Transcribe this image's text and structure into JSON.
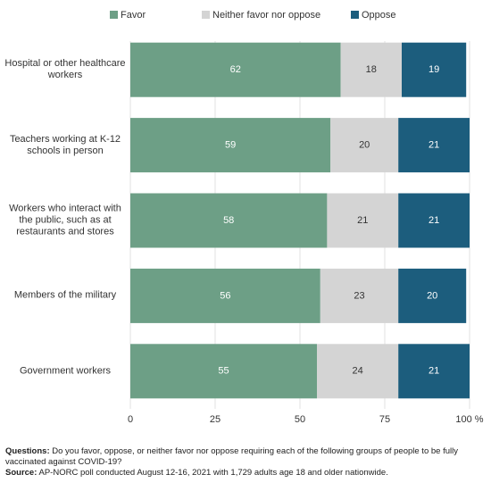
{
  "chart_data": {
    "type": "stacked-bar-horizontal",
    "categories": [
      "Hospital or other healthcare workers",
      "Teachers working at K-12 schools in person",
      "Workers who interact with the public, such as at restaurants and stores",
      "Members of the military",
      "Government workers"
    ],
    "series": [
      {
        "name": "Favor",
        "color": "#6d9f86",
        "label_color": "#ffffff",
        "values": [
          62,
          59,
          58,
          56,
          55
        ]
      },
      {
        "name": "Neither favor nor oppose",
        "color": "#d4d4d4",
        "label_color": "#333333",
        "values": [
          18,
          20,
          21,
          23,
          24
        ]
      },
      {
        "name": "Oppose",
        "color": "#1c5d7d",
        "label_color": "#ffffff",
        "values": [
          19,
          21,
          21,
          20,
          21
        ]
      }
    ],
    "xlim": [
      0,
      100
    ],
    "xticks": [
      0,
      25,
      50,
      75,
      {
        "value": 100,
        "label": "100 %"
      }
    ],
    "grid": true,
    "notes": [
      {
        "label": "Questions:",
        "text": "Do you favor, oppose, or neither favor nor oppose requiring each of the following groups of people to be fully vaccinated against COVID-19?"
      },
      {
        "label": "Source:",
        "text": "AP-NORC poll conducted August 12-16, 2021 with 1,729 adults age 18 and older nationwide."
      }
    ]
  }
}
